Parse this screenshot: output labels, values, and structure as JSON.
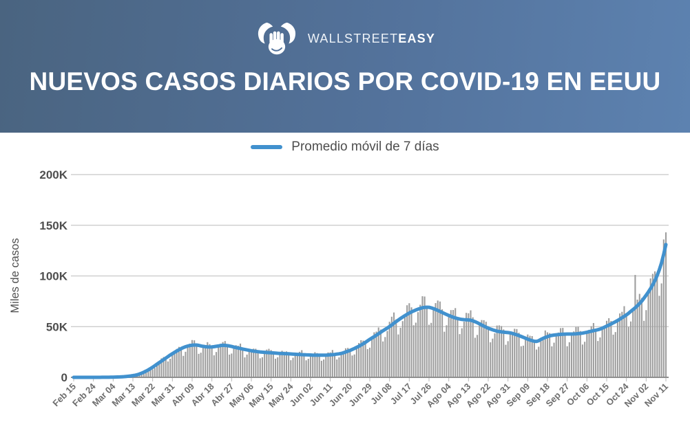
{
  "header": {
    "brand": {
      "name_regular": "WALLSTREET",
      "name_bold": "EASY"
    },
    "title": "NUEVOS CASOS DIARIOS POR COVID-19 EN EEUU",
    "bg_gradient": [
      "#4a6480",
      "#5d82b0"
    ]
  },
  "legend": {
    "label": "Promedio móvil de 7 días",
    "swatch_color": "#4191ce"
  },
  "chart_data": {
    "type": "combo",
    "title": "NUEVOS CASOS DIARIOS POR COVID-19 EN EEUU",
    "ylabel": "Miles de casos",
    "unit": "thousands of daily cases",
    "grid": true,
    "legend_position": "top-center",
    "ylim_thousands": [
      0,
      200
    ],
    "y_ticks": [
      {
        "label": "0",
        "value": 0
      },
      {
        "label": "50K",
        "value": 50
      },
      {
        "label": "100K",
        "value": 100
      },
      {
        "label": "150K",
        "value": 150
      },
      {
        "label": "200K",
        "value": 200
      }
    ],
    "x_total_days": 270,
    "x_tick_interval_days": 9,
    "x_ticks": [
      "Feb 15",
      "Feb 24",
      "Mar 04",
      "Mar 13",
      "Mar 22",
      "Mar 31",
      "Abr 09",
      "Abr 18",
      "Abr 27",
      "May 06",
      "May 15",
      "May 24",
      "Jun 02",
      "Jun 11",
      "Jun 20",
      "Jun 29",
      "Jul 08",
      "Jul 17",
      "Jul 26",
      "Ago 04",
      "Ago 13",
      "Ago 22",
      "Ago 31",
      "Sep 09",
      "Sep 18",
      "Sep 27",
      "Oct 06",
      "Oct 15",
      "Oct 24",
      "Nov 02",
      "Nov 11"
    ],
    "series": [
      {
        "name": "Promedio móvil de 7 días",
        "type": "line",
        "color": "#4191ce",
        "anchors_day_value": [
          [
            0,
            0
          ],
          [
            8,
            0
          ],
          [
            14,
            0.05
          ],
          [
            18,
            0.15
          ],
          [
            22,
            0.5
          ],
          [
            26,
            1.3
          ],
          [
            29,
            2.5
          ],
          [
            32,
            5
          ],
          [
            35,
            8.5
          ],
          [
            38,
            13
          ],
          [
            41,
            17.5
          ],
          [
            44,
            22
          ],
          [
            47,
            26
          ],
          [
            50,
            29.5
          ],
          [
            53,
            31.5
          ],
          [
            56,
            32
          ],
          [
            59,
            30.5
          ],
          [
            62,
            29.8
          ],
          [
            65,
            30.5
          ],
          [
            68,
            31.8
          ],
          [
            71,
            31
          ],
          [
            74,
            29.3
          ],
          [
            78,
            27.5
          ],
          [
            82,
            25.8
          ],
          [
            86,
            24.8
          ],
          [
            90,
            24.2
          ],
          [
            94,
            23.6
          ],
          [
            98,
            23.2
          ],
          [
            102,
            22.6
          ],
          [
            106,
            22.2
          ],
          [
            110,
            21.8
          ],
          [
            114,
            21.8
          ],
          [
            118,
            22.3
          ],
          [
            122,
            23.5
          ],
          [
            126,
            26.5
          ],
          [
            129,
            29.5
          ],
          [
            132,
            33
          ],
          [
            135,
            37.5
          ],
          [
            138,
            41.5
          ],
          [
            141,
            46
          ],
          [
            144,
            50
          ],
          [
            147,
            55
          ],
          [
            150,
            59.5
          ],
          [
            153,
            63.5
          ],
          [
            156,
            66.5
          ],
          [
            159,
            68.8
          ],
          [
            162,
            69.3
          ],
          [
            165,
            67
          ],
          [
            168,
            64
          ],
          [
            171,
            61
          ],
          [
            174,
            58.5
          ],
          [
            177,
            57
          ],
          [
            181,
            56.5
          ],
          [
            184,
            54
          ],
          [
            187,
            50.5
          ],
          [
            190,
            47.5
          ],
          [
            193,
            45.5
          ],
          [
            196,
            44.5
          ],
          [
            199,
            44
          ],
          [
            202,
            42
          ],
          [
            205,
            39.5
          ],
          [
            208,
            36.8
          ],
          [
            211,
            35
          ],
          [
            214,
            38.5
          ],
          [
            217,
            41
          ],
          [
            220,
            42
          ],
          [
            224,
            42.7
          ],
          [
            228,
            42.7
          ],
          [
            232,
            43.5
          ],
          [
            236,
            45.5
          ],
          [
            240,
            47.5
          ],
          [
            244,
            51.5
          ],
          [
            248,
            56
          ],
          [
            252,
            61.5
          ],
          [
            256,
            68.5
          ],
          [
            259,
            75
          ],
          [
            262,
            84
          ],
          [
            264,
            91
          ],
          [
            266,
            100
          ],
          [
            268,
            112
          ],
          [
            270,
            131
          ]
        ]
      },
      {
        "name": "Casos diarios",
        "type": "bar",
        "color": "#9e9e9e",
        "derivation": "moving_average * weekly_pattern * (1 + jitter)",
        "start_weekday": "Saturday",
        "weekly_pattern_sun_to_sat": [
          0.75,
          0.81,
          0.98,
          1.07,
          1.12,
          1.15,
          1.03
        ],
        "jitter_amplitude": 0.05,
        "max_bar_value": 144,
        "outliers_day_value": [
          [
            256,
            101
          ],
          [
            269,
            136
          ],
          [
            270,
            143
          ]
        ]
      }
    ]
  }
}
